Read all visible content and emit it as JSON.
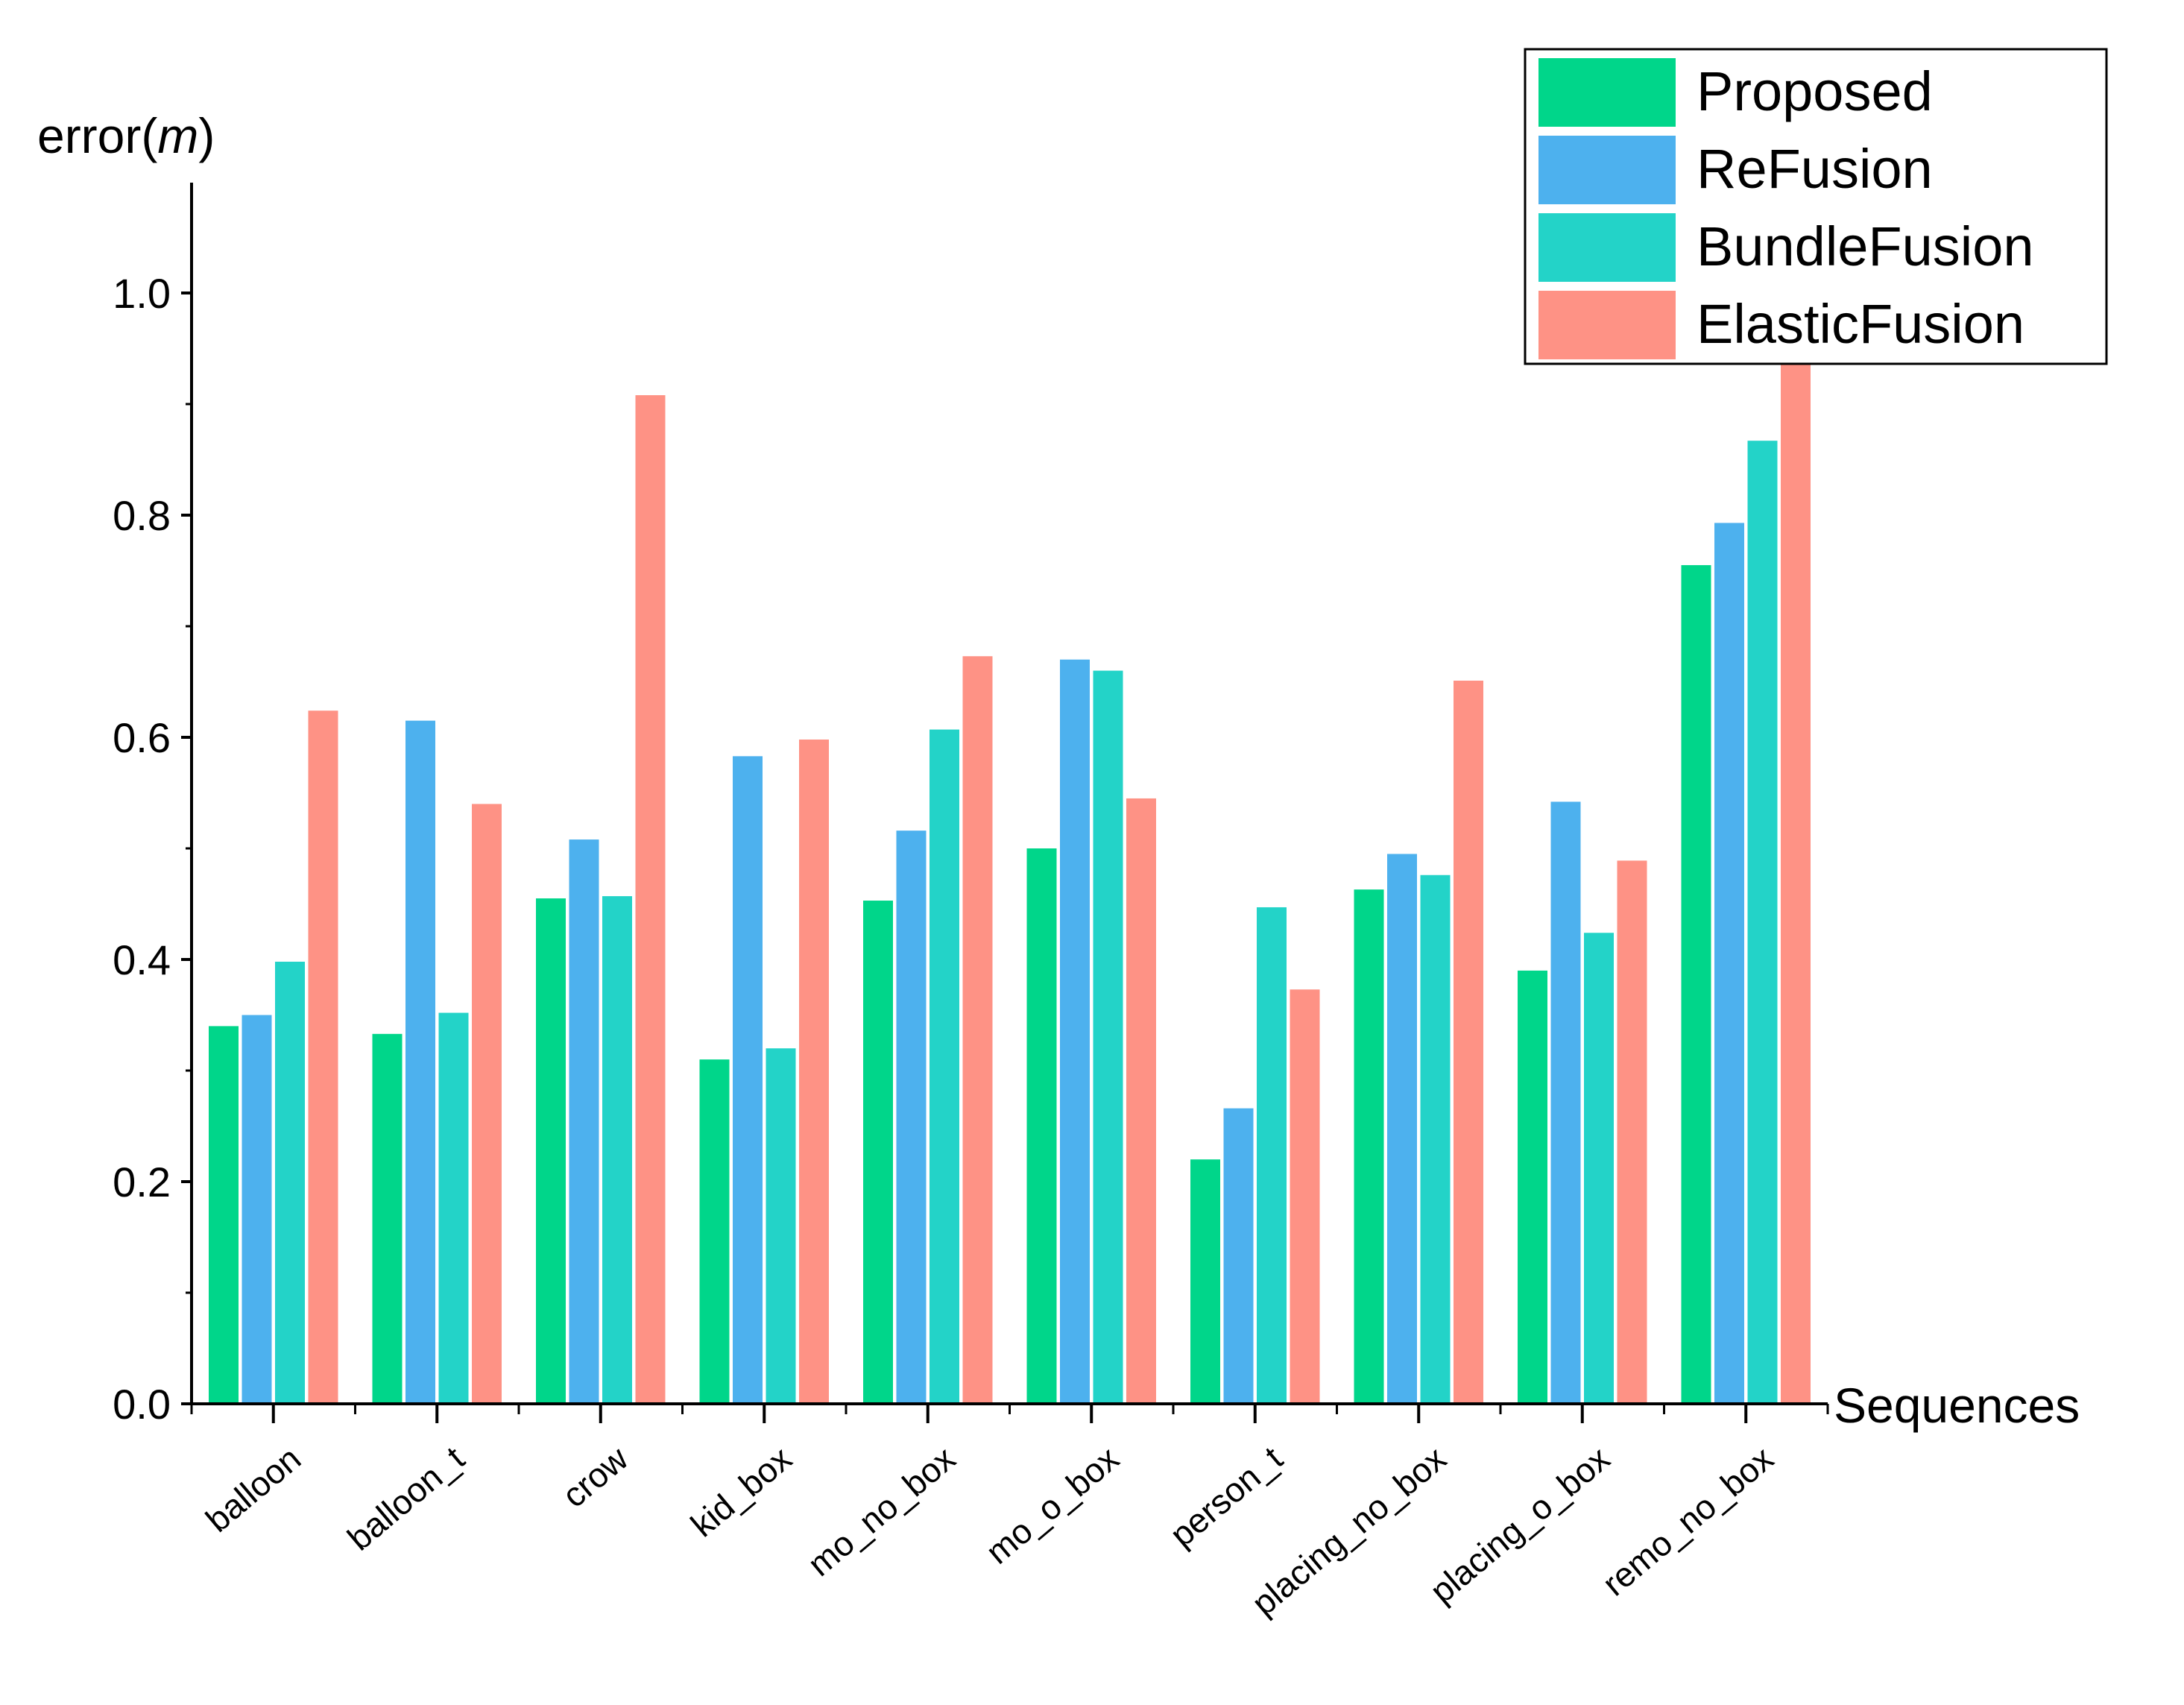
{
  "chart_data": {
    "type": "bar",
    "title": "",
    "ylabel_main": "error(",
    "ylabel_unit": "m",
    "ylabel_close": ")",
    "xlabel": "Sequences",
    "ylim": [
      0,
      1.1
    ],
    "yticks": [
      "0.0",
      "0.2",
      "0.4",
      "0.6",
      "0.8",
      "1.0"
    ],
    "categories": [
      "balloon",
      "balloon_t",
      "crow",
      "kid_box",
      "mo_no_box",
      "mo_o_box",
      "person_t",
      "placing_no_box",
      "placing_o_box",
      "remo_no_box"
    ],
    "legend_position": "top-right",
    "series": [
      {
        "name": "Proposed",
        "color": "#00D68A",
        "values": [
          0.34,
          0.333,
          0.455,
          0.31,
          0.453,
          0.5,
          0.22,
          0.463,
          0.39,
          0.755
        ]
      },
      {
        "name": "ReFusion",
        "color": "#4DB1EE",
        "values": [
          0.35,
          0.615,
          0.508,
          0.583,
          0.516,
          0.67,
          0.266,
          0.495,
          0.542,
          0.793
        ]
      },
      {
        "name": "BundleFusion",
        "color": "#23D3C8",
        "values": [
          0.398,
          0.352,
          0.457,
          0.32,
          0.607,
          0.66,
          0.447,
          0.476,
          0.424,
          0.867
        ]
      },
      {
        "name": "ElasticFusion",
        "color": "#FE9285",
        "values": [
          0.624,
          0.54,
          0.908,
          0.598,
          0.673,
          0.545,
          0.373,
          0.651,
          0.489,
          0.94
        ]
      }
    ]
  }
}
